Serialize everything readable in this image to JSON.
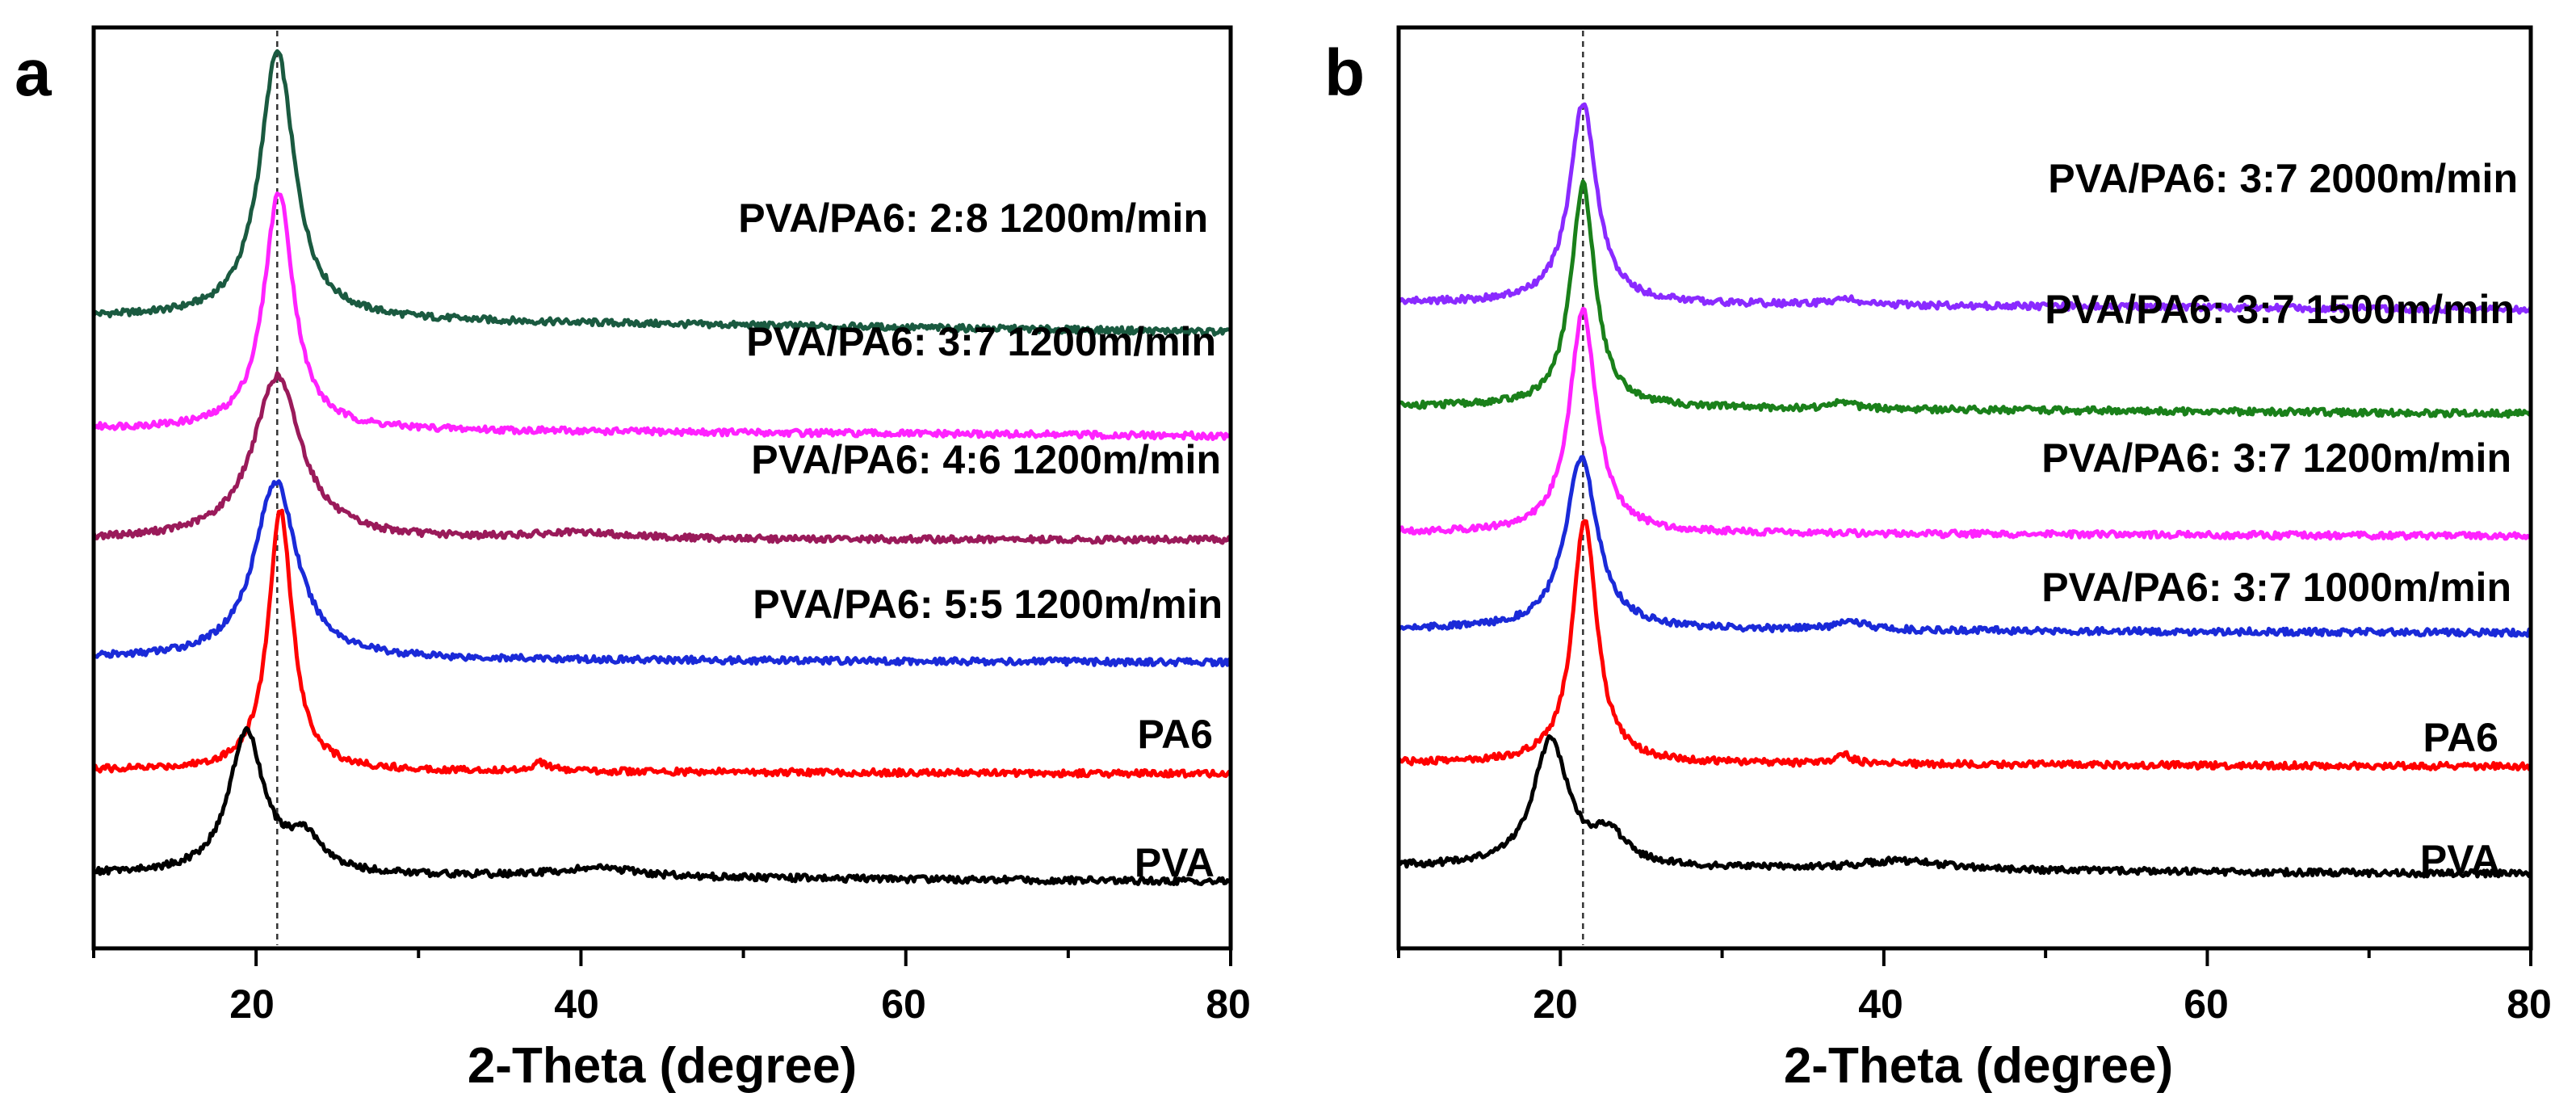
{
  "chart_data": [
    {
      "panel": "a",
      "type": "line",
      "xlabel": "2-Theta (degree)",
      "ylabel": "",
      "xlim": [
        10,
        80
      ],
      "x_ticks": [
        20,
        40,
        60,
        80
      ],
      "reference_line_x": 21.3,
      "series": [
        {
          "name": "PVA/PA6: 2:8 1200m/min",
          "color": "#1a5a40",
          "baseline": 7.9,
          "base_tilt": -0.2,
          "peaks": [
            {
              "x": 21.3,
              "h": 3.6,
              "w": 2.6
            }
          ]
        },
        {
          "name": "PVA/PA6: 3:7 1200m/min",
          "color": "#ff22ff",
          "baseline": 6.4,
          "base_tilt": -0.1,
          "peaks": [
            {
              "x": 21.4,
              "h": 3.2,
              "w": 2.2
            }
          ]
        },
        {
          "name": "PVA/PA6: 4:6 1200m/min",
          "color": "#9a1a5a",
          "baseline": 4.9,
          "base_tilt": 0.0,
          "peaks": [
            {
              "x": 21.3,
              "h": 2.2,
              "w": 3.6
            },
            {
              "x": 40,
              "h": 0.08,
              "w": 8
            }
          ]
        },
        {
          "name": "PVA/PA6: 5:5 1200m/min",
          "color": "#1a2ad8",
          "baseline": 3.3,
          "base_tilt": -0.05,
          "peaks": [
            {
              "x": 21.2,
              "h": 2.4,
              "w": 3.2
            }
          ]
        },
        {
          "name": "PA6",
          "color": "#ff0000",
          "baseline": 1.8,
          "base_tilt": -0.05,
          "peaks": [
            {
              "x": 21.5,
              "h": 3.5,
              "w": 1.8
            },
            {
              "x": 37.5,
              "h": 0.12,
              "w": 1.2
            }
          ]
        },
        {
          "name": "PVA",
          "color": "#000000",
          "baseline": 0.4,
          "base_tilt": -0.1,
          "peaks": [
            {
              "x": 19.4,
              "h": 1.9,
              "w": 2.6
            },
            {
              "x": 23.0,
              "h": 0.45,
              "w": 2.5
            },
            {
              "x": 41,
              "h": 0.12,
              "w": 6
            }
          ]
        }
      ]
    },
    {
      "panel": "b",
      "type": "line",
      "xlabel": "2-Theta (degree)",
      "ylabel": "",
      "xlim": [
        10,
        80
      ],
      "x_ticks": [
        20,
        40,
        60,
        80
      ],
      "reference_line_x": 21.4,
      "series": [
        {
          "name": "PVA/PA6: 3:7 2000m/min",
          "color": "#8a2aff",
          "baseline": 8.1,
          "base_tilt": -0.1,
          "peaks": [
            {
              "x": 21.4,
              "h": 2.7,
              "w": 2.0
            },
            {
              "x": 37.5,
              "h": 0.1,
              "w": 1.5
            }
          ]
        },
        {
          "name": "PVA/PA6: 3:7 1500m/min",
          "color": "#1a801a",
          "baseline": 6.7,
          "base_tilt": -0.1,
          "peaks": [
            {
              "x": 21.4,
              "h": 3.0,
              "w": 1.8
            },
            {
              "x": 37.5,
              "h": 0.1,
              "w": 1.5
            }
          ]
        },
        {
          "name": "PVA/PA6: 3:7 1200m/min",
          "color": "#ff22ff",
          "baseline": 5.0,
          "base_tilt": -0.05,
          "peaks": [
            {
              "x": 21.4,
              "h": 3.0,
              "w": 2.0
            }
          ]
        },
        {
          "name": "PVA/PA6: 3:7 1000m/min",
          "color": "#1a2ad8",
          "baseline": 3.7,
          "base_tilt": -0.05,
          "peaks": [
            {
              "x": 21.3,
              "h": 2.3,
              "w": 2.4
            },
            {
              "x": 38,
              "h": 0.1,
              "w": 2.5
            }
          ]
        },
        {
          "name": "PA6",
          "color": "#ff0000",
          "baseline": 1.9,
          "base_tilt": -0.05,
          "peaks": [
            {
              "x": 21.5,
              "h": 3.3,
              "w": 1.8
            },
            {
              "x": 37.5,
              "h": 0.12,
              "w": 1.2
            }
          ]
        },
        {
          "name": "PVA",
          "color": "#000000",
          "baseline": 0.5,
          "base_tilt": -0.1,
          "peaks": [
            {
              "x": 19.4,
              "h": 1.7,
              "w": 2.6
            },
            {
              "x": 23.0,
              "h": 0.4,
              "w": 2.5
            },
            {
              "x": 41,
              "h": 0.12,
              "w": 6
            }
          ]
        }
      ]
    }
  ]
}
